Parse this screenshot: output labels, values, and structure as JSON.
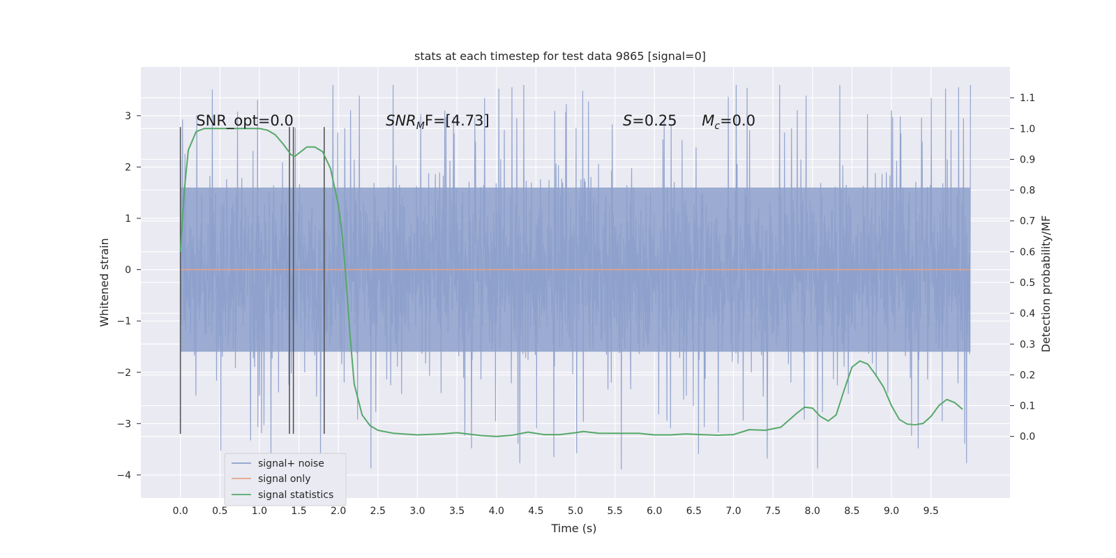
{
  "chart_data": {
    "type": "line",
    "title": "stats at each timestep for test data 9865 [signal=0]",
    "xlabel": "Time (s)",
    "ylabel_left": "Whitened strain",
    "ylabel_right": "Detection probability/MF",
    "xlim": [
      -0.5,
      10.5
    ],
    "ylim_left": [
      -4.45,
      3.95
    ],
    "ylim_right": [
      -0.2,
      1.2
    ],
    "x_ticks": [
      0.0,
      0.5,
      1.0,
      1.5,
      2.0,
      2.5,
      3.0,
      3.5,
      4.0,
      4.5,
      5.0,
      5.5,
      6.0,
      6.5,
      7.0,
      7.5,
      8.0,
      8.5,
      9.0,
      9.5
    ],
    "x_tick_labels": [
      "0.0",
      "0.5",
      "1.0",
      "1.5",
      "2.0",
      "2.5",
      "3.0",
      "3.5",
      "4.0",
      "4.5",
      "5.0",
      "5.5",
      "6.0",
      "6.5",
      "7.0",
      "7.5",
      "8.0",
      "8.5",
      "9.0",
      "9.5"
    ],
    "y_left_ticks": [
      -4,
      -3,
      -2,
      -1,
      0,
      1,
      2,
      3
    ],
    "y_left_tick_labels": [
      "−4",
      "−3",
      "−2",
      "−1",
      "0",
      "1",
      "2",
      "3"
    ],
    "y_right_ticks": [
      0.0,
      0.1,
      0.2,
      0.3,
      0.4,
      0.5,
      0.6,
      0.7,
      0.8,
      0.9,
      1.0,
      1.1
    ],
    "y_right_tick_labels": [
      "0.0",
      "0.1",
      "0.2",
      "0.3",
      "0.4",
      "0.5",
      "0.6",
      "0.7",
      "0.8",
      "0.9",
      "1.0",
      "1.1"
    ],
    "grid": true,
    "legend_position": "lower-left",
    "annotations": {
      "snr_opt": "SNR_opt=0.0",
      "snr_mf_base": "SNR",
      "snr_mf_sub": "M",
      "snr_mf_rest": "F=[4.73]",
      "s_var": "S",
      "s_rest": "=0.25",
      "mc_var": "M",
      "mc_sub": "c",
      "mc_rest": "=0.0"
    },
    "annotation_x": {
      "snr_opt": 0.2,
      "snr_mf": 2.6,
      "s": 5.6,
      "mc": 6.6
    },
    "annotation_y_right": 1.01,
    "vertical_markers": {
      "x": [
        0.0,
        1.38,
        1.43,
        1.82
      ],
      "y_range_left": [
        -3.2,
        2.78
      ],
      "color": "#555555"
    },
    "series": [
      {
        "name": "signal+ noise",
        "color": "#8da0cb",
        "axis": "left",
        "x_range": [
          0.0,
          10.0
        ],
        "typical_abs": 1.6,
        "peak_range": [
          -3.9,
          3.6
        ]
      },
      {
        "name": "signal only",
        "color": "#e5a287",
        "axis": "left",
        "x": [
          0.0,
          10.0
        ],
        "y": [
          0.0,
          0.0
        ]
      },
      {
        "name": "signal statistics",
        "color": "#55a868",
        "axis": "right",
        "x": [
          0.0,
          0.05,
          0.1,
          0.2,
          0.3,
          0.5,
          0.7,
          0.9,
          1.0,
          1.1,
          1.2,
          1.3,
          1.4,
          1.45,
          1.5,
          1.6,
          1.7,
          1.8,
          1.9,
          2.0,
          2.05,
          2.1,
          2.15,
          2.2,
          2.3,
          2.4,
          2.5,
          2.7,
          3.0,
          3.3,
          3.5,
          3.8,
          4.0,
          4.2,
          4.4,
          4.6,
          4.8,
          5.0,
          5.1,
          5.3,
          5.5,
          5.8,
          6.0,
          6.2,
          6.4,
          6.6,
          6.8,
          7.0,
          7.2,
          7.4,
          7.6,
          7.8,
          7.9,
          8.0,
          8.1,
          8.2,
          8.3,
          8.4,
          8.5,
          8.6,
          8.7,
          8.8,
          8.9,
          9.0,
          9.1,
          9.2,
          9.3,
          9.4,
          9.5,
          9.6,
          9.7,
          9.8,
          9.9
        ],
        "y": [
          0.6,
          0.8,
          0.93,
          0.99,
          1.0,
          1.0,
          1.0,
          1.0,
          1.0,
          0.995,
          0.98,
          0.95,
          0.915,
          0.91,
          0.92,
          0.94,
          0.94,
          0.925,
          0.87,
          0.75,
          0.65,
          0.5,
          0.32,
          0.17,
          0.07,
          0.035,
          0.02,
          0.01,
          0.005,
          0.008,
          0.012,
          0.003,
          0.0,
          0.004,
          0.014,
          0.006,
          0.006,
          0.012,
          0.016,
          0.01,
          0.01,
          0.01,
          0.005,
          0.005,
          0.008,
          0.006,
          0.004,
          0.006,
          0.022,
          0.02,
          0.03,
          0.075,
          0.095,
          0.092,
          0.065,
          0.05,
          0.07,
          0.15,
          0.225,
          0.245,
          0.235,
          0.2,
          0.16,
          0.1,
          0.055,
          0.04,
          0.038,
          0.042,
          0.065,
          0.1,
          0.12,
          0.11,
          0.088
        ]
      }
    ]
  }
}
